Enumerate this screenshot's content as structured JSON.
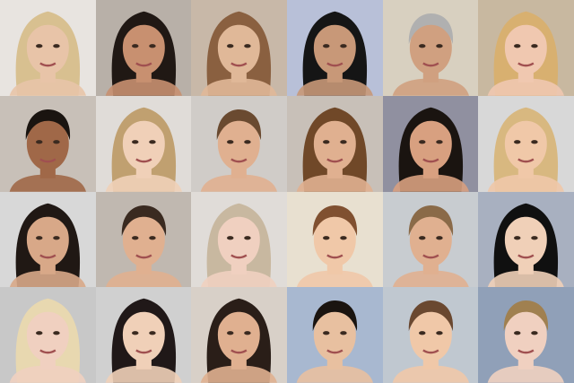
{
  "grid": {
    "columns": 6,
    "rows": 4,
    "tiles": [
      {
        "bg": "#e8e4e0",
        "hair": "#d8c090",
        "skin": "#e8c4a8",
        "hair_style": "long"
      },
      {
        "bg": "#b8b0a8",
        "hair": "#201814",
        "skin": "#c89070",
        "hair_style": "long"
      },
      {
        "bg": "#c8b8a8",
        "hair": "#8a6040",
        "skin": "#e0b898",
        "hair_style": "long"
      },
      {
        "bg": "#b8c0d8",
        "hair": "#151515",
        "skin": "#c89878",
        "hair_style": "long"
      },
      {
        "bg": "#d8d0c0",
        "hair": "#b0b0b0",
        "skin": "#d0a080",
        "hair_style": "short"
      },
      {
        "bg": "#c8b8a0",
        "hair": "#d8b070",
        "skin": "#f0c8b0",
        "hair_style": "long"
      },
      {
        "bg": "#c8c0b8",
        "hair": "#1a1410",
        "skin": "#a06848",
        "hair_style": "short"
      },
      {
        "bg": "#e0dcd8",
        "hair": "#c0a070",
        "skin": "#f0d0b8",
        "hair_style": "long"
      },
      {
        "bg": "#d0ccc8",
        "hair": "#6a4a30",
        "skin": "#e0b090",
        "hair_style": "short"
      },
      {
        "bg": "#c8c0b8",
        "hair": "#704828",
        "skin": "#e0b090",
        "hair_style": "long"
      },
      {
        "bg": "#9090a0",
        "hair": "#1a1410",
        "skin": "#d8a080",
        "hair_style": "long"
      },
      {
        "bg": "#d8d8d8",
        "hair": "#d8b880",
        "skin": "#f0c8a8",
        "hair_style": "long"
      },
      {
        "bg": "#d8d8d8",
        "hair": "#201814",
        "skin": "#d8a888",
        "hair_style": "long"
      },
      {
        "bg": "#c0b8b0",
        "hair": "#3a2a20",
        "skin": "#e0b090",
        "hair_style": "short"
      },
      {
        "bg": "#e0dcd8",
        "hair": "#c8b8a0",
        "skin": "#f0d0c0",
        "hair_style": "long"
      },
      {
        "bg": "#e8e0d0",
        "hair": "#805030",
        "skin": "#f0c8a8",
        "hair_style": "short"
      },
      {
        "bg": "#c8ccd0",
        "hair": "#8a6a48",
        "skin": "#e0b090",
        "hair_style": "short"
      },
      {
        "bg": "#a8b0c0",
        "hair": "#101010",
        "skin": "#f0d0b8",
        "hair_style": "long"
      },
      {
        "bg": "#c8c8c8",
        "hair": "#e8d8b0",
        "skin": "#f0d0c0",
        "hair_style": "long"
      },
      {
        "bg": "#d0d0d0",
        "hair": "#201818",
        "skin": "#f0d0b8",
        "hair_style": "long"
      },
      {
        "bg": "#d8d0c8",
        "hair": "#2a1e18",
        "skin": "#e0b090",
        "hair_style": "long"
      },
      {
        "bg": "#a8b8d0",
        "hair": "#1a1410",
        "skin": "#e8c0a0",
        "hair_style": "short"
      },
      {
        "bg": "#c0c8d0",
        "hair": "#6a4830",
        "skin": "#f0c8a8",
        "hair_style": "short"
      },
      {
        "bg": "#90a0b8",
        "hair": "#a08050",
        "skin": "#f0d0c0",
        "hair_style": "short"
      }
    ]
  }
}
